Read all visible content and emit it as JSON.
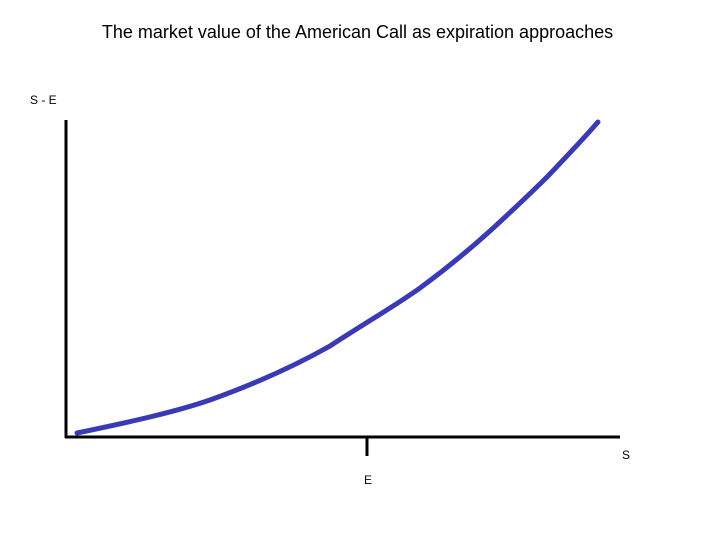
{
  "title": "The market value of the American Call as expiration approaches",
  "y_axis_label": "S - E",
  "x_axis_label": "S",
  "x_marker_label": "E"
}
